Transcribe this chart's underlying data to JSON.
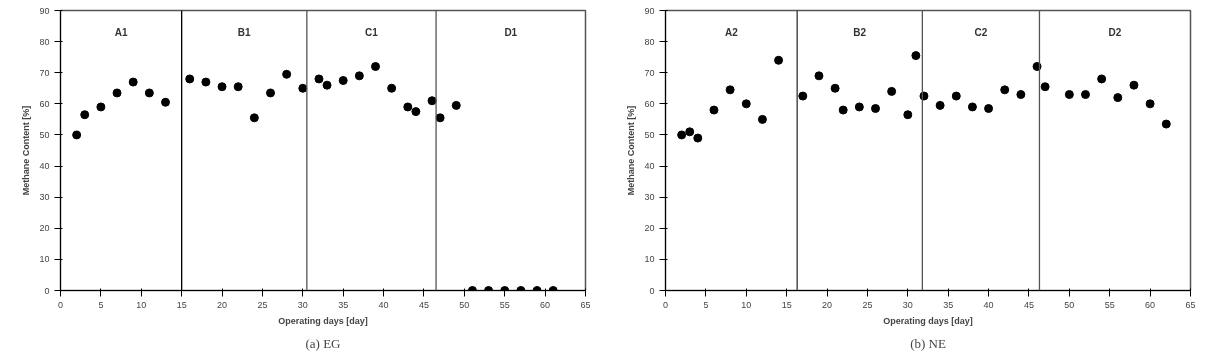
{
  "chart_data": [
    {
      "type": "scatter",
      "title": "(a) EG",
      "xlabel": "Operating days [day]",
      "ylabel": "Methane Content [%]",
      "xlim": [
        0,
        65
      ],
      "xticks": [
        0,
        5,
        10,
        15,
        20,
        25,
        30,
        35,
        40,
        45,
        50,
        55,
        60,
        65
      ],
      "ylim": [
        0,
        90
      ],
      "yticks": [
        0,
        10,
        20,
        30,
        40,
        50,
        60,
        70,
        80,
        90
      ],
      "grid": false,
      "marker": "circle",
      "x": [
        2,
        3,
        5,
        7,
        9,
        11,
        13,
        16,
        18,
        20,
        22,
        24,
        26,
        28,
        30,
        32,
        33,
        35,
        37,
        39,
        41,
        43,
        44,
        46,
        47,
        49,
        51,
        53,
        55,
        57,
        59,
        61
      ],
      "series": [
        {
          "color": "#000000",
          "values": [
            50,
            56.5,
            59,
            63.5,
            67,
            63.5,
            60.5,
            68,
            67,
            65.5,
            65.5,
            55.5,
            63.5,
            69.5,
            65,
            68,
            66,
            67.5,
            69,
            72,
            65,
            59,
            57.5,
            61,
            55.5,
            59.5,
            0,
            0,
            0,
            0,
            0,
            0
          ]
        }
      ],
      "ref_lines": [
        {
          "axis": "x",
          "value": 15,
          "color": "#000000"
        },
        {
          "axis": "x",
          "value": 30.5,
          "color": "#555555"
        },
        {
          "axis": "x",
          "value": 46.5,
          "color": "#555555"
        }
      ],
      "annotations": [
        "A1",
        "B1",
        "C1",
        "D1"
      ]
    },
    {
      "type": "scatter",
      "title": "(b) NE",
      "xlabel": "Operating days [day]",
      "ylabel": "Methane Content [%]",
      "xlim": [
        0,
        65
      ],
      "xticks": [
        0,
        5,
        10,
        15,
        20,
        25,
        30,
        35,
        40,
        45,
        50,
        55,
        60,
        65
      ],
      "ylim": [
        0,
        90
      ],
      "yticks": [
        0,
        10,
        20,
        30,
        40,
        50,
        60,
        70,
        80,
        90
      ],
      "grid": false,
      "marker": "circle",
      "x": [
        2,
        3,
        4,
        6,
        8,
        10,
        12,
        14,
        17,
        19,
        21,
        22,
        24,
        26,
        28,
        30,
        31,
        32,
        34,
        36,
        38,
        40,
        42,
        44,
        46,
        47,
        50,
        52,
        54,
        56,
        58,
        60,
        62
      ],
      "series": [
        {
          "color": "#000000",
          "values": [
            50,
            51,
            49,
            58,
            64.5,
            60,
            55,
            74,
            62.5,
            69,
            65,
            58,
            59,
            58.5,
            64,
            56.5,
            75.5,
            62.5,
            59.5,
            62.5,
            59,
            58.5,
            64.5,
            63,
            72,
            65.5,
            63,
            63,
            68,
            62,
            66,
            60,
            53.5
          ]
        }
      ],
      "ref_lines": [
        {
          "axis": "x",
          "value": 16.3,
          "color": "#333333"
        },
        {
          "axis": "x",
          "value": 31.8,
          "color": "#555555"
        },
        {
          "axis": "x",
          "value": 46.3,
          "color": "#555555"
        }
      ],
      "annotations": [
        "A2",
        "B2",
        "C2",
        "D2"
      ]
    }
  ]
}
